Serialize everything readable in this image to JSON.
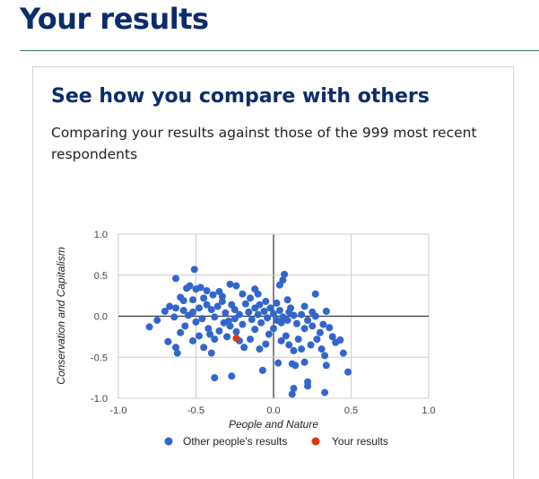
{
  "page": {
    "heading": "Your results",
    "card_title": "See how you compare with others",
    "card_subtitle": "Comparing your results against those of the 999 most recent respondents"
  },
  "colors": {
    "heading": "#0b2d6b",
    "others": "#3366cc",
    "you": "#dc3912"
  },
  "chart_data": {
    "type": "scatter",
    "xlabel": "People and Nature",
    "ylabel": "Conservation and Capitalism",
    "xlim": [
      -1.0,
      1.0
    ],
    "ylim": [
      -1.0,
      1.0
    ],
    "x_ticks": [
      "-1.0",
      "-0.5",
      "0.0",
      "0.5",
      "1.0"
    ],
    "y_ticks": [
      "1.0",
      "0.5",
      "0.0",
      "-0.5",
      "-1.0"
    ],
    "grid": true,
    "legend_position": "bottom",
    "series": [
      {
        "name": "Other people's results",
        "color": "#3366cc",
        "points": [
          [
            -0.51,
            0.57
          ],
          [
            -0.63,
            0.46
          ],
          [
            -0.54,
            0.37
          ],
          [
            -0.56,
            0.34
          ],
          [
            -0.5,
            0.33
          ],
          [
            -0.47,
            0.35
          ],
          [
            -0.43,
            0.31
          ],
          [
            -0.6,
            0.23
          ],
          [
            -0.58,
            0.19
          ],
          [
            -0.52,
            0.2
          ],
          [
            -0.45,
            0.22
          ],
          [
            -0.39,
            0.26
          ],
          [
            -0.33,
            0.24
          ],
          [
            -0.28,
            0.39
          ],
          [
            -0.24,
            0.37
          ],
          [
            -0.2,
            0.27
          ],
          [
            -0.12,
            0.33
          ],
          [
            -0.1,
            0.27
          ],
          [
            -0.05,
            0.18
          ],
          [
            -0.63,
            0.1
          ],
          [
            -0.67,
            0.12
          ],
          [
            -0.7,
            0.06
          ],
          [
            -0.75,
            -0.05
          ],
          [
            -0.8,
            -0.13
          ],
          [
            -0.64,
            -0.01
          ],
          [
            -0.58,
            0.07
          ],
          [
            -0.55,
            0.01
          ],
          [
            -0.52,
            0.05
          ],
          [
            -0.5,
            -0.07
          ],
          [
            -0.48,
            0.1
          ],
          [
            -0.46,
            -0.03
          ],
          [
            -0.43,
            0.14
          ],
          [
            -0.4,
            0.08
          ],
          [
            -0.38,
            -0.01
          ],
          [
            -0.36,
            0.12
          ],
          [
            -0.33,
            0.18
          ],
          [
            -0.31,
            0.04
          ],
          [
            -0.29,
            -0.06
          ],
          [
            -0.27,
            0.14
          ],
          [
            -0.25,
            0.08
          ],
          [
            -0.22,
            0.02
          ],
          [
            -0.2,
            -0.1
          ],
          [
            -0.18,
            0.15
          ],
          [
            -0.16,
            0.05
          ],
          [
            -0.14,
            -0.04
          ],
          [
            -0.12,
            0.1
          ],
          [
            -0.1,
            0.02
          ],
          [
            -0.08,
            -0.08
          ],
          [
            -0.06,
            0.06
          ],
          [
            -0.04,
            -0.02
          ],
          [
            -0.02,
            0.1
          ],
          [
            0.0,
            0.03
          ],
          [
            0.02,
            -0.05
          ],
          [
            0.04,
            0.07
          ],
          [
            0.06,
            -0.01
          ],
          [
            0.07,
            0.51
          ],
          [
            0.06,
            0.44
          ],
          [
            0.04,
            0.38
          ],
          [
            0.09,
            0.2
          ],
          [
            0.11,
            0.1
          ],
          [
            0.13,
            0.01
          ],
          [
            0.15,
            -0.09
          ],
          [
            0.18,
            0.02
          ],
          [
            0.2,
            -0.15
          ],
          [
            0.22,
            -0.05
          ],
          [
            0.25,
            -0.12
          ],
          [
            0.27,
            0.0
          ],
          [
            0.3,
            -0.2
          ],
          [
            0.32,
            -0.1
          ],
          [
            0.34,
            0.06
          ],
          [
            0.36,
            -0.14
          ],
          [
            0.38,
            -0.25
          ],
          [
            0.4,
            -0.32
          ],
          [
            0.43,
            -0.29
          ],
          [
            0.45,
            -0.45
          ],
          [
            0.48,
            -0.68
          ],
          [
            0.27,
            0.27
          ],
          [
            0.33,
            -0.48
          ],
          [
            0.34,
            -0.6
          ],
          [
            0.2,
            -0.56
          ],
          [
            0.12,
            -0.58
          ],
          [
            0.14,
            -0.6
          ],
          [
            0.03,
            -0.57
          ],
          [
            -0.07,
            -0.66
          ],
          [
            0.22,
            -0.8
          ],
          [
            0.22,
            -0.85
          ],
          [
            0.13,
            -0.88
          ],
          [
            0.12,
            -0.95
          ],
          [
            0.33,
            -0.93
          ],
          [
            -0.38,
            -0.75
          ],
          [
            -0.27,
            -0.73
          ],
          [
            -0.68,
            -0.31
          ],
          [
            -0.63,
            -0.38
          ],
          [
            -0.62,
            -0.45
          ],
          [
            -0.48,
            -0.24
          ],
          [
            -0.52,
            -0.3
          ],
          [
            -0.41,
            -0.22
          ],
          [
            -0.38,
            -0.28
          ],
          [
            -0.35,
            -0.18
          ],
          [
            -0.32,
            -0.08
          ],
          [
            -0.3,
            -0.25
          ],
          [
            -0.24,
            -0.19
          ],
          [
            -0.22,
            -0.3
          ],
          [
            -0.19,
            -0.38
          ],
          [
            -0.15,
            -0.28
          ],
          [
            -0.12,
            -0.16
          ],
          [
            -0.09,
            -0.4
          ],
          [
            -0.05,
            -0.34
          ],
          [
            -0.03,
            -0.22
          ],
          [
            0.0,
            -0.15
          ],
          [
            0.05,
            -0.3
          ],
          [
            0.08,
            -0.24
          ],
          [
            0.1,
            -0.35
          ],
          [
            0.13,
            -0.42
          ],
          [
            0.16,
            -0.28
          ],
          [
            0.18,
            -0.4
          ],
          [
            0.24,
            -0.35
          ],
          [
            0.28,
            -0.28
          ],
          [
            0.31,
            -0.4
          ],
          [
            -0.45,
            -0.38
          ],
          [
            -0.57,
            -0.12
          ],
          [
            -0.6,
            -0.2
          ],
          [
            -0.42,
            -0.15
          ],
          [
            -0.28,
            -0.12
          ],
          [
            0.05,
            -0.08
          ],
          [
            0.09,
            -0.05
          ],
          [
            0.2,
            0.12
          ],
          [
            0.25,
            0.05
          ],
          [
            -0.15,
            0.22
          ],
          [
            -0.35,
            0.3
          ],
          [
            -0.4,
            -0.45
          ],
          [
            -0.09,
            0.14
          ],
          [
            0.02,
            0.16
          ],
          [
            -0.25,
            -0.03
          ],
          [
            0.1,
            0.05
          ]
        ]
      },
      {
        "name": "Your results",
        "color": "#dc3912",
        "points": [
          [
            -0.24,
            -0.27
          ]
        ]
      }
    ]
  }
}
